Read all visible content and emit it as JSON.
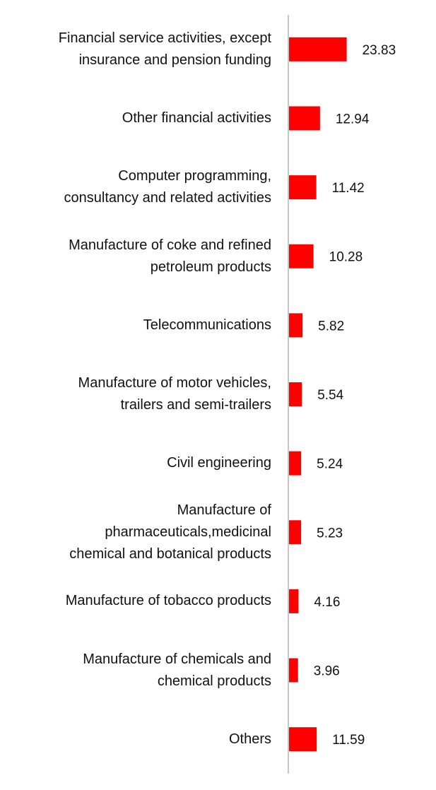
{
  "chart_data": {
    "type": "barh",
    "categories": [
      "Financial service activities, except\ninsurance and pension funding",
      "Other financial activities",
      "Computer programming,\nconsultancy and related activities",
      "Manufacture of coke and refined\npetroleum products",
      "Telecommunications",
      "Manufacture of motor vehicles,\ntrailers and semi-trailers",
      "Civil engineering",
      "Manufacture of\npharmaceuticals,medicinal\nchemical and botanical products",
      "Manufacture of tobacco products",
      "Manufacture of chemicals and\nchemical products",
      "Others"
    ],
    "values": [
      23.83,
      12.94,
      11.42,
      10.28,
      5.82,
      5.54,
      5.24,
      5.23,
      4.16,
      3.96,
      11.59
    ],
    "color": "#ff0000",
    "xlim": [
      0,
      60
    ]
  }
}
